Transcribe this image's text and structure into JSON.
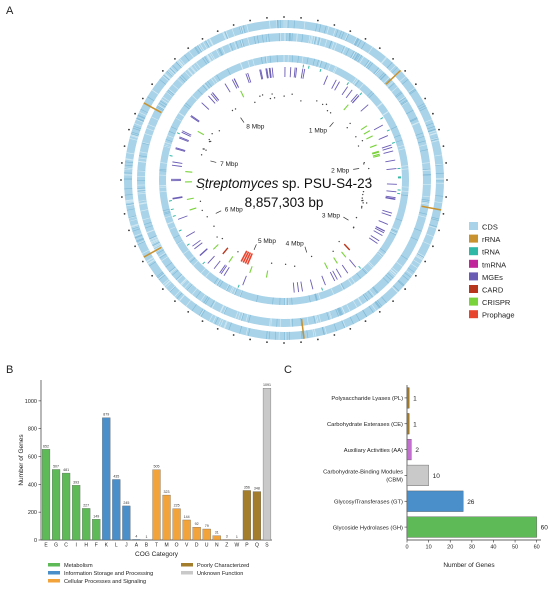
{
  "panels": {
    "a": "A",
    "b": "B",
    "c": "C"
  },
  "genome_map": {
    "organism_italic": "Streptomyces",
    "organism_rest": " sp. PSU-S4-23",
    "size_label": "8,857,303 bp",
    "ticks": [
      "1 Mbp",
      "2 Mbp",
      "3 Mbp",
      "4 Mbp",
      "5 Mbp",
      "6 Mbp",
      "7 Mbp",
      "8 Mbp"
    ],
    "legend": [
      {
        "label": "CDS",
        "color": "#a9d3e8"
      },
      {
        "label": "rRNA",
        "color": "#c9922e"
      },
      {
        "label": "tRNA",
        "color": "#2fb8a6"
      },
      {
        "label": "tmRNA",
        "color": "#c1259c"
      },
      {
        "label": "MGEs",
        "color": "#6a5bb5"
      },
      {
        "label": "CARD",
        "color": "#b8361b"
      },
      {
        "label": "CRISPR",
        "color": "#7ad33b"
      },
      {
        "label": "Prophage",
        "color": "#e8452f"
      }
    ]
  },
  "chart_data": [
    {
      "type": "bar",
      "xlabel": "COG Category",
      "ylabel": "Number of Genes",
      "ylim": [
        0,
        1100
      ],
      "yticks": [
        0,
        200,
        400,
        600,
        800,
        1000
      ],
      "categories": [
        "E",
        "G",
        "C",
        "I",
        "H",
        "F",
        "K",
        "L",
        "J",
        "A",
        "B",
        "T",
        "M",
        "O",
        "V",
        "D",
        "U",
        "N",
        "Z",
        "W",
        "P",
        "Q",
        "S"
      ],
      "values": [
        652,
        507,
        481,
        393,
        227,
        149,
        879,
        435,
        245,
        4,
        1,
        505,
        323,
        225,
        144,
        92,
        79,
        31,
        3,
        1,
        356,
        348,
        1091
      ],
      "groups": [
        "metabolism",
        "metabolism",
        "metabolism",
        "metabolism",
        "metabolism",
        "metabolism",
        "info",
        "info",
        "info",
        "info",
        "info",
        "cellular",
        "cellular",
        "cellular",
        "cellular",
        "cellular",
        "cellular",
        "cellular",
        "cellular",
        "cellular",
        "poor",
        "poor",
        "unknown"
      ],
      "legend": [
        {
          "key": "metabolism",
          "label": "Metabolism",
          "color": "#5dba56"
        },
        {
          "key": "info",
          "label": "Information Storage and Processing",
          "color": "#4a8fca"
        },
        {
          "key": "cellular",
          "label": "Cellular Processes and Signaling",
          "color": "#f2a33a"
        },
        {
          "key": "poor",
          "label": "Poorly Characterized",
          "color": "#a47d2c"
        },
        {
          "key": "unknown",
          "label": "Unknown Function",
          "color": "#c9c9c9"
        }
      ],
      "grid": false
    },
    {
      "type": "bar",
      "orientation": "horizontal",
      "xlabel": "Number of Genes",
      "xlim": [
        0,
        62
      ],
      "xticks": [
        0,
        10,
        20,
        30,
        40,
        50,
        60
      ],
      "categories": [
        [
          "Polysaccharide Lyases (PL)"
        ],
        [
          "Carbohydrate Esterases (CE)"
        ],
        [
          "Auxiliary Activities (AA)"
        ],
        [
          "Carbohydrate-Binding Modules",
          "(CBM)"
        ],
        [
          "GlycosylTransferases (GT)"
        ],
        [
          "Glycoside Hydrolases (GH)"
        ]
      ],
      "values": [
        1,
        1,
        2,
        10,
        26,
        60
      ],
      "colors": [
        "#a47d2c",
        "#a47d2c",
        "#c36fd0",
        "#c9c9c9",
        "#4a8fca",
        "#5dba56"
      ],
      "grid": false
    }
  ]
}
